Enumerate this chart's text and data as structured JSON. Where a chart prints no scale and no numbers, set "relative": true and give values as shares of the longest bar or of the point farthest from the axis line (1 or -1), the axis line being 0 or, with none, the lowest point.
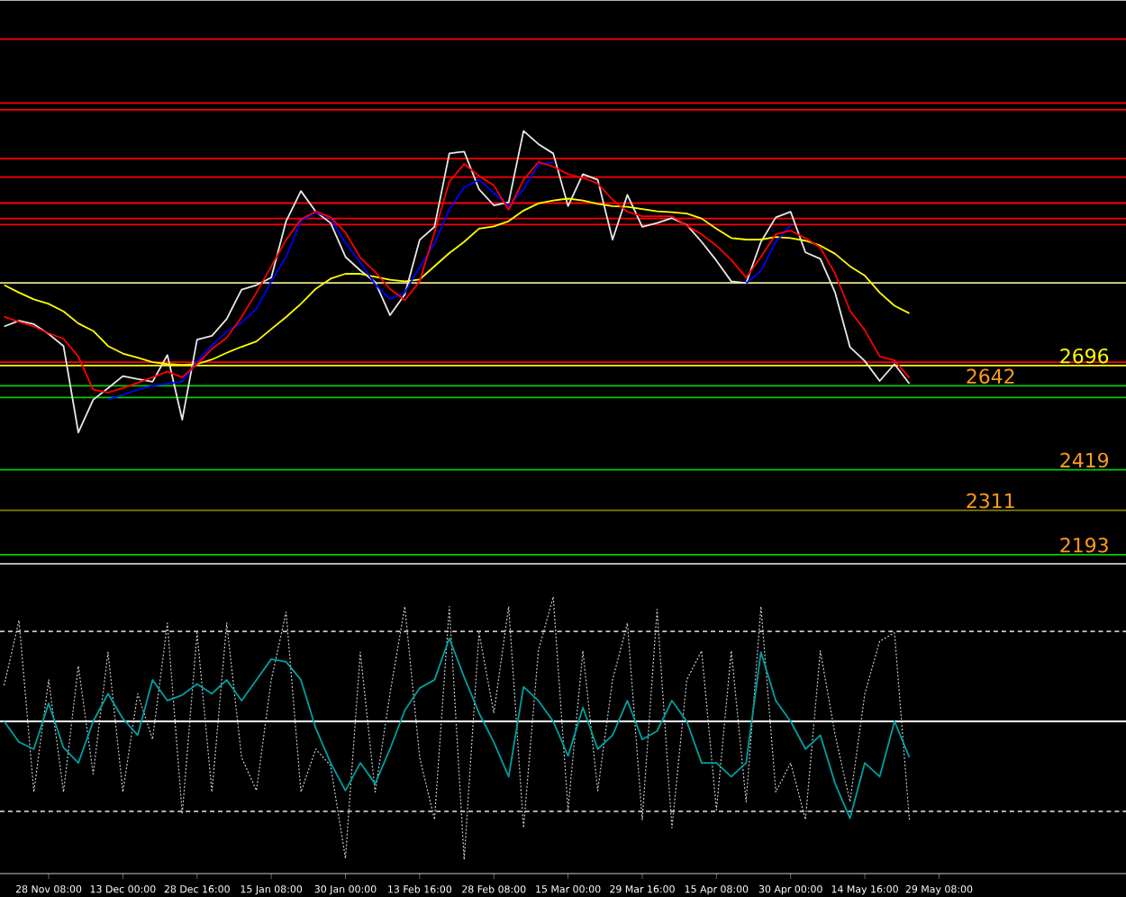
{
  "chart_data": [
    {
      "type": "line",
      "ylim": [
        2169,
        3668
      ],
      "tick_labels": false,
      "categories": [
        null,
        null,
        null,
        null,
        null,
        null,
        null,
        null,
        null,
        null,
        null,
        null,
        null,
        null,
        null,
        null,
        null,
        null,
        null,
        null,
        null,
        null,
        null,
        null,
        null,
        null,
        null,
        null,
        null,
        null,
        null,
        null,
        null,
        null,
        null,
        null,
        null,
        null,
        null,
        null,
        null,
        null,
        null,
        null,
        null,
        null,
        null,
        null,
        null,
        null,
        null,
        null,
        null,
        null,
        null,
        null,
        null,
        null,
        null,
        null,
        null,
        null,
        null,
        null,
        null,
        null,
        null,
        null,
        null,
        null,
        null,
        null,
        null,
        null,
        null,
        null
      ],
      "series": [
        {
          "color": "#e8e8e8",
          "values": [
            2800,
            2815,
            2806,
            2780,
            2748,
            2518,
            2605,
            2636,
            2668,
            2660,
            2653,
            2724,
            2552,
            2765,
            2775,
            2820,
            2898,
            2910,
            2930,
            3080,
            3160,
            3105,
            3075,
            2985,
            2949,
            2918,
            2830,
            2885,
            3030,
            3065,
            3260,
            3265,
            3165,
            3122,
            3130,
            3320,
            3285,
            3260,
            3120,
            3205,
            3190,
            3031,
            3150,
            3065,
            3075,
            3088,
            3070,
            3025,
            2975,
            2920,
            2915,
            3025,
            3090,
            3105,
            2997,
            2980,
            2890,
            2745,
            2708,
            2655,
            2700,
            2648,
            null,
            null,
            null,
            null,
            null,
            null,
            null,
            null,
            null,
            null,
            null,
            null,
            null,
            null
          ]
        },
        {
          "color": "#ffff00",
          "values": [
            2910,
            2890,
            2872,
            2860,
            2840,
            2808,
            2788,
            2748,
            2728,
            2717,
            2705,
            2700,
            2698,
            2700,
            2712,
            2730,
            2746,
            2760,
            2793,
            2825,
            2860,
            2900,
            2927,
            2940,
            2940,
            2932,
            2924,
            2920,
            2925,
            2960,
            2995,
            3025,
            3060,
            3066,
            3080,
            3108,
            3127,
            3135,
            3140,
            3135,
            3126,
            3120,
            3118,
            3112,
            3106,
            3104,
            3100,
            3087,
            3060,
            3035,
            3031,
            3031,
            3038,
            3035,
            3028,
            3015,
            2993,
            2960,
            2935,
            2890,
            2855,
            2835,
            null,
            null,
            null,
            null,
            null,
            null,
            null,
            null,
            null,
            null,
            null,
            null,
            null,
            null
          ]
        },
        {
          "color": "#0000ff",
          "values": [
            null,
            null,
            null,
            null,
            null,
            null,
            null,
            2605,
            2618,
            2632,
            2642,
            2648,
            2653,
            2707,
            2750,
            2786,
            2810,
            2847,
            2920,
            2985,
            3080,
            3103,
            3088,
            3022,
            2970,
            2912,
            2873,
            2890,
            2958,
            3020,
            3112,
            3170,
            3190,
            3155,
            3120,
            3165,
            3230,
            3237,
            null,
            null,
            null,
            null,
            null,
            null,
            null,
            null,
            null,
            null,
            null,
            null,
            2915,
            2948,
            3025,
            3069,
            null,
            null,
            null,
            null,
            null,
            null,
            null,
            null,
            null,
            null,
            null,
            null,
            null,
            null,
            null,
            null,
            null,
            null,
            null,
            null,
            null,
            null
          ]
        },
        {
          "color": "#ff0000",
          "values": [
            2826,
            2812,
            2800,
            2782,
            2767,
            2720,
            2632,
            2624,
            2636,
            2650,
            2665,
            2680,
            2665,
            2700,
            2740,
            2770,
            2825,
            2890,
            2960,
            3030,
            3085,
            3106,
            3090,
            3050,
            2983,
            2945,
            2900,
            2870,
            2920,
            3050,
            3185,
            3232,
            3200,
            3175,
            3110,
            3190,
            3237,
            3225,
            3205,
            3195,
            3180,
            3137,
            3105,
            3093,
            3093,
            3093,
            3068,
            3045,
            3015,
            2977,
            2930,
            2985,
            3045,
            3055,
            3035,
            3010,
            2940,
            2842,
            2790,
            2720,
            2710,
            2663,
            null,
            null,
            null,
            null,
            null,
            null,
            null,
            null,
            null,
            null,
            null,
            null,
            null,
            null
          ]
        }
      ],
      "ref_lines": [
        {
          "axis": "y",
          "value": 3564,
          "color": "#ff0000"
        },
        {
          "axis": "y",
          "value": 3394,
          "color": "#ff0000"
        },
        {
          "axis": "y",
          "value": 3376,
          "color": "#ff0000"
        },
        {
          "axis": "y",
          "value": 3246,
          "color": "#ff0000"
        },
        {
          "axis": "y",
          "value": 3197,
          "color": "#ff0000"
        },
        {
          "axis": "y",
          "value": 3128,
          "color": "#ff0000"
        },
        {
          "axis": "y",
          "value": 3087,
          "color": "#ff0000"
        },
        {
          "axis": "y",
          "value": 3071,
          "color": "#ff0000"
        },
        {
          "axis": "y",
          "value": 2916,
          "color": "#e6e68c"
        },
        {
          "axis": "y",
          "value": 2705,
          "color": "#ff0000"
        },
        {
          "axis": "y",
          "value": 2696,
          "color": "#ffff00",
          "label": "2696"
        },
        {
          "axis": "y",
          "value": 2642,
          "color": "#00cc00",
          "label": "2642"
        },
        {
          "axis": "y",
          "value": 2611,
          "color": "#00cc00"
        },
        {
          "axis": "y",
          "value": 2419,
          "color": "#00cc00",
          "label": "2419"
        },
        {
          "axis": "y",
          "value": 2311,
          "color": "#808000",
          "label": "2311"
        },
        {
          "axis": "y",
          "value": 2193,
          "color": "#00cc00",
          "label": "2193"
        }
      ]
    },
    {
      "type": "line",
      "relative": true,
      "tick_labels": "x",
      "categories": [
        null,
        null,
        null,
        "28 Nov 08:00",
        null,
        null,
        null,
        null,
        "13 Dec 00:00",
        null,
        null,
        null,
        null,
        "28 Dec 16:00",
        null,
        null,
        null,
        null,
        "15 Jan 08:00",
        null,
        null,
        null,
        null,
        "30 Jan 00:00",
        null,
        null,
        null,
        null,
        "13 Feb 16:00",
        null,
        null,
        null,
        null,
        "28 Feb 08:00",
        null,
        null,
        null,
        null,
        "15 Mar 00:00",
        null,
        null,
        null,
        null,
        "29 Mar 16:00",
        null,
        null,
        null,
        null,
        "15 Apr 08:00",
        null,
        null,
        null,
        null,
        "30 Apr 00:00",
        null,
        null,
        null,
        null,
        "14 May 16:00",
        null,
        null,
        null,
        null,
        "29 May 08:00",
        null,
        null,
        null,
        null,
        null,
        null,
        null,
        null,
        null,
        null,
        null,
        null
      ],
      "series": [
        {
          "color": "#c8c8c8",
          "line_style": "dotted",
          "values": [
            0.26,
            0.73,
            -0.51,
            0.3,
            -0.51,
            0.4,
            -0.38,
            0.5,
            -0.51,
            0.2,
            -0.13,
            0.71,
            -0.67,
            0.64,
            -0.51,
            0.71,
            -0.26,
            -0.5,
            0.3,
            0.79,
            -0.51,
            -0.2,
            -0.32,
            -0.99,
            0.5,
            -0.51,
            0.2,
            0.83,
            -0.26,
            -0.71,
            0.83,
            -1,
            0.64,
            0.06,
            0.83,
            -0.77,
            0.51,
            0.9,
            -0.64,
            0.51,
            -0.5,
            0.3,
            0.71,
            -0.71,
            0.81,
            -0.77,
            0.3,
            0.51,
            -0.64,
            0.51,
            -0.58,
            0.83,
            -0.51,
            -0.3,
            -0.71,
            0.51,
            -0.1,
            -0.58,
            0.2,
            0.58,
            0.64,
            -0.71,
            null,
            null,
            null,
            null,
            null,
            null,
            null,
            null,
            null,
            null,
            null,
            null,
            null,
            null
          ]
        },
        {
          "color": "#00a0a0",
          "values": [
            0,
            -0.15,
            -0.2,
            0.13,
            -0.19,
            -0.3,
            0,
            0.2,
            0.02,
            -0.1,
            0.3,
            0.15,
            0.19,
            0.27,
            0.2,
            0.3,
            0.15,
            0.3,
            0.45,
            0.43,
            0.3,
            -0.05,
            -0.3,
            -0.5,
            -0.3,
            -0.45,
            -0.2,
            0.08,
            0.24,
            0.3,
            0.6,
            0.32,
            0.06,
            -0.15,
            -0.4,
            0.25,
            0.15,
            0,
            -0.25,
            0.1,
            -0.2,
            -0.1,
            0.15,
            -0.13,
            -0.07,
            0.15,
            0,
            -0.3,
            -0.3,
            -0.4,
            -0.3,
            0.5,
            0.15,
            0,
            -0.2,
            -0.1,
            -0.45,
            -0.7,
            -0.3,
            -0.4,
            0,
            -0.26,
            null,
            null,
            null,
            null,
            null,
            null,
            null,
            null,
            null,
            null,
            null,
            null,
            null,
            null
          ]
        }
      ],
      "ref_lines": [
        {
          "axis": "y",
          "value": 0.65,
          "color": "#c8c8c8",
          "line_style": "dashed"
        },
        {
          "axis": "y",
          "value": 0,
          "color": "#ffffff",
          "line_style": "solid"
        },
        {
          "axis": "y",
          "value": -0.65,
          "color": "#c8c8c8",
          "line_style": "dashed"
        }
      ]
    }
  ]
}
